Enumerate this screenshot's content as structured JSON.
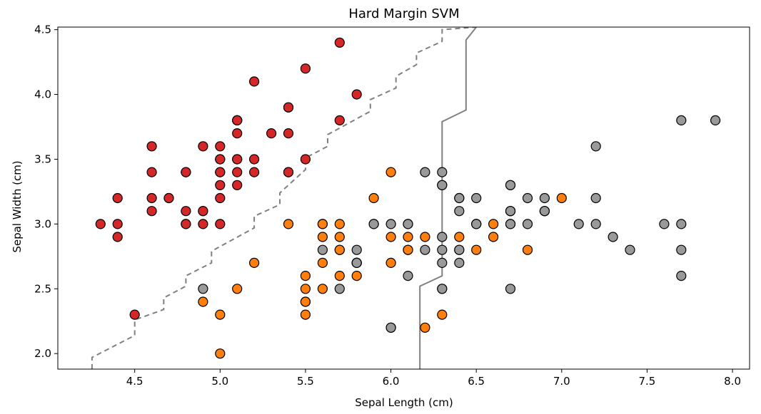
{
  "chart_data": {
    "type": "scatter",
    "title": "Hard Margin SVM",
    "xlabel": "Sepal Length (cm)",
    "ylabel": "Sepal Width (cm)",
    "xlim": [
      4.05,
      8.1
    ],
    "ylim": [
      1.88,
      4.52
    ],
    "xticks": [
      "4.5",
      "5.0",
      "5.5",
      "6.0",
      "6.5",
      "7.0",
      "7.5",
      "8.0"
    ],
    "yticks": [
      "2.0",
      "2.5",
      "3.0",
      "3.5",
      "4.0",
      "4.5"
    ],
    "grid": false,
    "colors": {
      "setosa": "#d62728",
      "versicolor": "#ff7f0e",
      "virginica": "#999999",
      "boundary": "#808080"
    },
    "series": [
      {
        "class": "setosa",
        "points": [
          [
            5.1,
            3.5
          ],
          [
            4.9,
            3.0
          ],
          [
            4.7,
            3.2
          ],
          [
            4.6,
            3.1
          ],
          [
            5.0,
            3.6
          ],
          [
            5.4,
            3.9
          ],
          [
            4.6,
            3.4
          ],
          [
            5.0,
            3.4
          ],
          [
            4.4,
            2.9
          ],
          [
            4.9,
            3.1
          ],
          [
            5.4,
            3.7
          ],
          [
            4.8,
            3.4
          ],
          [
            4.8,
            3.0
          ],
          [
            4.3,
            3.0
          ],
          [
            5.8,
            4.0
          ],
          [
            5.7,
            4.4
          ],
          [
            5.4,
            3.9
          ],
          [
            5.1,
            3.5
          ],
          [
            5.7,
            3.8
          ],
          [
            5.1,
            3.8
          ],
          [
            5.4,
            3.4
          ],
          [
            5.1,
            3.7
          ],
          [
            4.6,
            3.6
          ],
          [
            5.1,
            3.3
          ],
          [
            4.8,
            3.4
          ],
          [
            5.0,
            3.0
          ],
          [
            5.0,
            3.4
          ],
          [
            5.2,
            3.5
          ],
          [
            5.2,
            3.4
          ],
          [
            4.7,
            3.2
          ],
          [
            4.8,
            3.1
          ],
          [
            5.4,
            3.4
          ],
          [
            5.2,
            4.1
          ],
          [
            5.5,
            4.2
          ],
          [
            4.9,
            3.1
          ],
          [
            5.0,
            3.2
          ],
          [
            5.5,
            3.5
          ],
          [
            4.9,
            3.6
          ],
          [
            4.4,
            3.0
          ],
          [
            5.1,
            3.4
          ],
          [
            5.0,
            3.5
          ],
          [
            4.5,
            2.3
          ],
          [
            4.4,
            3.2
          ],
          [
            5.0,
            3.5
          ],
          [
            5.1,
            3.8
          ],
          [
            4.8,
            3.0
          ],
          [
            5.1,
            3.8
          ],
          [
            4.6,
            3.2
          ],
          [
            5.3,
            3.7
          ],
          [
            5.0,
            3.3
          ]
        ]
      },
      {
        "class": "versicolor",
        "points": [
          [
            7.0,
            3.2
          ],
          [
            6.4,
            3.2
          ],
          [
            6.9,
            3.1
          ],
          [
            5.5,
            2.3
          ],
          [
            6.5,
            2.8
          ],
          [
            5.7,
            2.8
          ],
          [
            6.3,
            3.3
          ],
          [
            4.9,
            2.4
          ],
          [
            6.6,
            2.9
          ],
          [
            5.2,
            2.7
          ],
          [
            5.0,
            2.0
          ],
          [
            5.9,
            3.0
          ],
          [
            6.0,
            2.2
          ],
          [
            6.1,
            2.9
          ],
          [
            5.6,
            2.9
          ],
          [
            6.7,
            3.1
          ],
          [
            5.6,
            3.0
          ],
          [
            5.8,
            2.7
          ],
          [
            6.2,
            2.2
          ],
          [
            5.6,
            2.5
          ],
          [
            5.9,
            3.2
          ],
          [
            6.1,
            2.8
          ],
          [
            6.3,
            2.5
          ],
          [
            6.1,
            2.8
          ],
          [
            6.4,
            2.9
          ],
          [
            6.6,
            3.0
          ],
          [
            6.8,
            2.8
          ],
          [
            6.7,
            3.0
          ],
          [
            6.0,
            2.9
          ],
          [
            5.7,
            2.6
          ],
          [
            5.5,
            2.4
          ],
          [
            5.5,
            2.4
          ],
          [
            5.8,
            2.7
          ],
          [
            6.0,
            2.7
          ],
          [
            5.4,
            3.0
          ],
          [
            6.0,
            3.4
          ],
          [
            6.7,
            3.1
          ],
          [
            6.3,
            2.3
          ],
          [
            5.6,
            3.0
          ],
          [
            5.5,
            2.5
          ],
          [
            5.5,
            2.6
          ],
          [
            6.1,
            3.0
          ],
          [
            5.8,
            2.6
          ],
          [
            5.0,
            2.3
          ],
          [
            5.6,
            2.7
          ],
          [
            5.7,
            3.0
          ],
          [
            5.7,
            2.9
          ],
          [
            6.2,
            2.9
          ],
          [
            5.1,
            2.5
          ],
          [
            5.7,
            2.8
          ]
        ]
      },
      {
        "class": "virginica",
        "points": [
          [
            6.3,
            3.3
          ],
          [
            5.8,
            2.7
          ],
          [
            7.1,
            3.0
          ],
          [
            6.3,
            2.9
          ],
          [
            6.5,
            3.0
          ],
          [
            7.6,
            3.0
          ],
          [
            4.9,
            2.5
          ],
          [
            7.3,
            2.9
          ],
          [
            6.7,
            2.5
          ],
          [
            7.2,
            3.6
          ],
          [
            6.5,
            3.2
          ],
          [
            6.4,
            2.7
          ],
          [
            6.8,
            3.0
          ],
          [
            5.7,
            2.5
          ],
          [
            5.8,
            2.8
          ],
          [
            6.4,
            3.2
          ],
          [
            6.5,
            3.0
          ],
          [
            7.7,
            3.8
          ],
          [
            7.7,
            2.6
          ],
          [
            6.0,
            2.2
          ],
          [
            6.9,
            3.2
          ],
          [
            5.6,
            2.8
          ],
          [
            7.7,
            2.8
          ],
          [
            6.3,
            2.7
          ],
          [
            6.7,
            3.3
          ],
          [
            7.2,
            3.2
          ],
          [
            6.2,
            2.8
          ],
          [
            6.1,
            3.0
          ],
          [
            6.4,
            2.8
          ],
          [
            7.2,
            3.0
          ],
          [
            7.4,
            2.8
          ],
          [
            7.9,
            3.8
          ],
          [
            6.4,
            2.8
          ],
          [
            6.3,
            2.8
          ],
          [
            6.1,
            2.6
          ],
          [
            7.7,
            3.0
          ],
          [
            6.3,
            3.4
          ],
          [
            6.4,
            3.1
          ],
          [
            6.0,
            3.0
          ],
          [
            6.9,
            3.1
          ],
          [
            6.7,
            3.1
          ],
          [
            6.9,
            3.1
          ],
          [
            5.8,
            2.7
          ],
          [
            6.8,
            3.2
          ],
          [
            6.7,
            3.3
          ],
          [
            6.7,
            3.0
          ],
          [
            6.3,
            2.5
          ],
          [
            6.5,
            3.0
          ],
          [
            6.2,
            3.4
          ],
          [
            5.9,
            3.0
          ]
        ]
      }
    ],
    "boundaries": [
      {
        "style": "dashed",
        "points": [
          [
            4.25,
            1.88
          ],
          [
            4.25,
            1.97
          ],
          [
            4.5,
            2.14
          ],
          [
            4.5,
            2.26
          ],
          [
            4.67,
            2.34
          ],
          [
            4.67,
            2.43
          ],
          [
            4.8,
            2.52
          ],
          [
            4.8,
            2.6
          ],
          [
            4.95,
            2.7
          ],
          [
            4.95,
            2.79
          ],
          [
            5.2,
            2.97
          ],
          [
            5.2,
            3.06
          ],
          [
            5.35,
            3.15
          ],
          [
            5.35,
            3.24
          ],
          [
            5.5,
            3.42
          ],
          [
            5.5,
            3.51
          ],
          [
            5.63,
            3.6
          ],
          [
            5.63,
            3.69
          ],
          [
            5.88,
            3.87
          ],
          [
            5.88,
            3.96
          ],
          [
            6.03,
            4.05
          ],
          [
            6.03,
            4.14
          ],
          [
            6.15,
            4.23
          ],
          [
            6.15,
            4.32
          ],
          [
            6.3,
            4.41
          ],
          [
            6.3,
            4.5
          ],
          [
            6.5,
            4.52
          ]
        ]
      },
      {
        "style": "solid",
        "points": [
          [
            6.17,
            1.88
          ],
          [
            6.17,
            2.52
          ],
          [
            6.3,
            2.6
          ],
          [
            6.3,
            3.79
          ],
          [
            6.44,
            3.88
          ],
          [
            6.44,
            4.42
          ],
          [
            6.5,
            4.52
          ]
        ]
      }
    ]
  }
}
